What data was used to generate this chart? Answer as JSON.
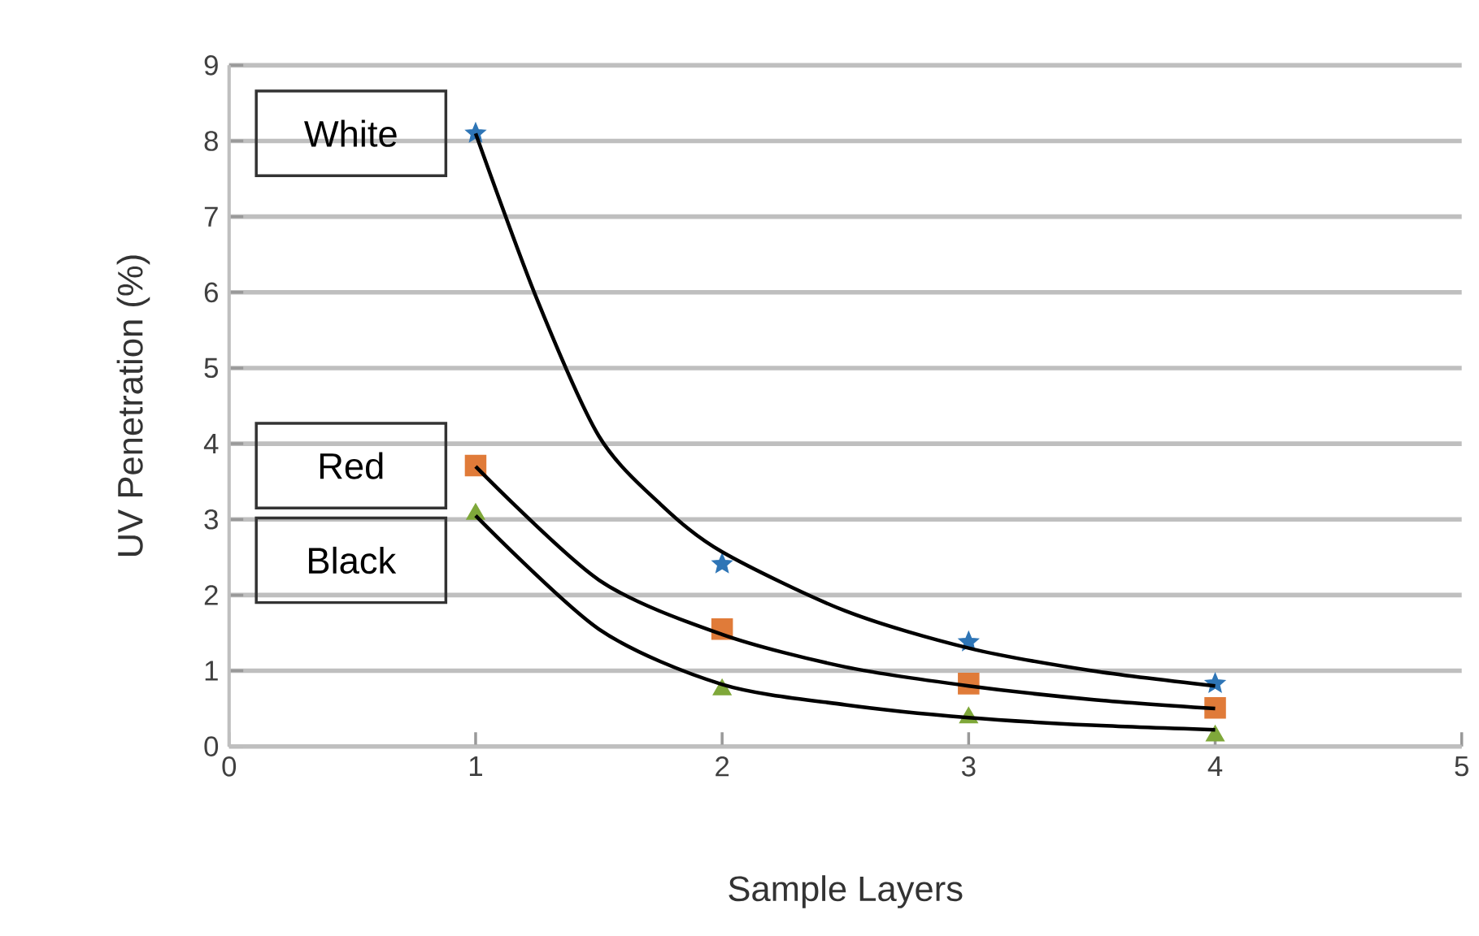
{
  "chart_data": {
    "type": "scatter",
    "xlabel": "Sample Layers",
    "ylabel": "UV Penetration (%)",
    "xlim": [
      0,
      5
    ],
    "xticks": [
      0,
      1,
      2,
      3,
      4,
      5
    ],
    "ylim": [
      0,
      9
    ],
    "yticks": [
      0,
      1,
      2,
      3,
      4,
      5,
      6,
      7,
      8,
      9
    ],
    "grid": "y",
    "series": [
      {
        "type": "line",
        "color": "#000000",
        "marker": "none",
        "x": [
          1,
          1.25,
          1.5,
          1.75,
          2,
          2.5,
          3,
          3.5,
          4
        ],
        "values": [
          8.1,
          5.9,
          4.1,
          3.2,
          2.57,
          1.79,
          1.3,
          1.0,
          0.8
        ]
      },
      {
        "type": "line",
        "color": "#000000",
        "marker": "none",
        "x": [
          1,
          1.5,
          2,
          2.5,
          3,
          3.5,
          4
        ],
        "values": [
          3.7,
          2.2,
          1.48,
          1.05,
          0.8,
          0.62,
          0.5
        ]
      },
      {
        "type": "line",
        "color": "#000000",
        "marker": "none",
        "x": [
          1,
          1.5,
          2,
          2.5,
          3,
          3.5,
          4
        ],
        "values": [
          3.05,
          1.55,
          0.82,
          0.55,
          0.38,
          0.28,
          0.22
        ]
      },
      {
        "name": "White",
        "color": "#2e75b6",
        "marker": "star",
        "x": [
          1,
          2,
          3,
          4
        ],
        "values": [
          8.1,
          2.41,
          1.38,
          0.83
        ]
      },
      {
        "name": "Red",
        "color": "#e07b39",
        "marker": "square",
        "x": [
          1,
          2,
          3,
          4
        ],
        "values": [
          3.71,
          1.55,
          0.83,
          0.51
        ]
      },
      {
        "name": "Black",
        "color": "#7fa83a",
        "marker": "triangle",
        "x": [
          1,
          2,
          3,
          4
        ],
        "values": [
          3.07,
          0.75,
          0.38,
          0.14
        ]
      }
    ]
  }
}
